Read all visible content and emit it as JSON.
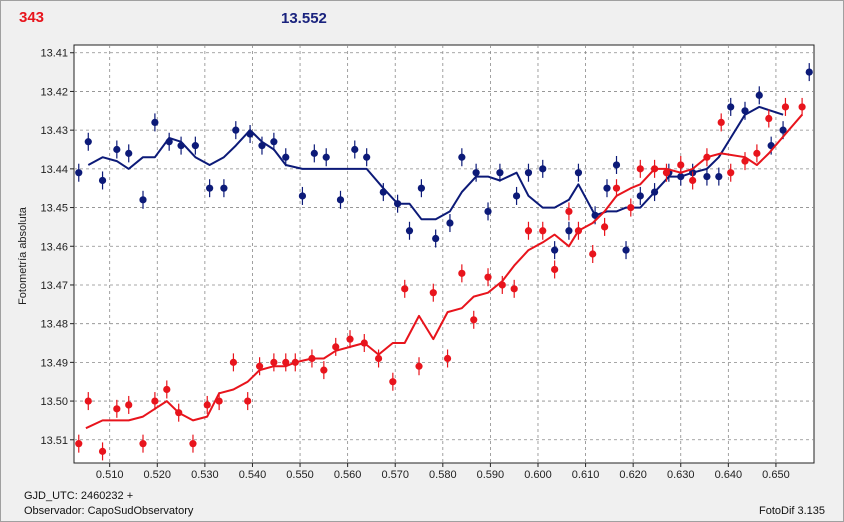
{
  "header": {
    "left_value": "343",
    "center_value": "13.552"
  },
  "footer": {
    "gjd": "GJD_UTC: 2460232 +",
    "observer": "Observador: CapoSudObservatory",
    "version": "FotoDif 3.135"
  },
  "colors": {
    "red_series": "#e8141c",
    "blue_series": "#0c1a78",
    "grid": "#8a8a8a",
    "plot_bg": "#ffffff"
  },
  "chart_data": {
    "type": "scatter",
    "title": "",
    "xlabel": "",
    "ylabel": "Fotometría absoluta",
    "xlim": [
      0.5025,
      0.658
    ],
    "ylim": [
      13.408,
      13.516
    ],
    "y_inverted": true,
    "grid": true,
    "x_ticks": [
      "0.510",
      "0.520",
      "0.530",
      "0.540",
      "0.550",
      "0.560",
      "0.570",
      "0.580",
      "0.590",
      "0.600",
      "0.610",
      "0.620",
      "0.630",
      "0.640",
      "0.650"
    ],
    "y_ticks": [
      "13.41",
      "13.42",
      "13.43",
      "13.44",
      "13.45",
      "13.46",
      "13.47",
      "13.48",
      "13.49",
      "13.50",
      "13.51"
    ],
    "series": [
      {
        "color": "#0c1a78",
        "points": [
          [
            0.5035,
            13.441
          ],
          [
            0.5055,
            13.433
          ],
          [
            0.5085,
            13.443
          ],
          [
            0.5115,
            13.435
          ],
          [
            0.514,
            13.436
          ],
          [
            0.517,
            13.448
          ],
          [
            0.5195,
            13.428
          ],
          [
            0.5225,
            13.433
          ],
          [
            0.525,
            13.434
          ],
          [
            0.528,
            13.434
          ],
          [
            0.531,
            13.445
          ],
          [
            0.534,
            13.445
          ],
          [
            0.5365,
            13.43
          ],
          [
            0.5395,
            13.431
          ],
          [
            0.542,
            13.434
          ],
          [
            0.5445,
            13.433
          ],
          [
            0.547,
            13.437
          ],
          [
            0.5505,
            13.447
          ],
          [
            0.553,
            13.436
          ],
          [
            0.5555,
            13.437
          ],
          [
            0.5585,
            13.448
          ],
          [
            0.5615,
            13.435
          ],
          [
            0.564,
            13.437
          ],
          [
            0.5675,
            13.446
          ],
          [
            0.5705,
            13.449
          ],
          [
            0.573,
            13.456
          ],
          [
            0.5755,
            13.445
          ],
          [
            0.5785,
            13.458
          ],
          [
            0.5815,
            13.454
          ],
          [
            0.584,
            13.437
          ],
          [
            0.587,
            13.441
          ],
          [
            0.5895,
            13.451
          ],
          [
            0.592,
            13.441
          ],
          [
            0.5955,
            13.447
          ],
          [
            0.598,
            13.441
          ],
          [
            0.601,
            13.44
          ],
          [
            0.6035,
            13.461
          ],
          [
            0.6065,
            13.456
          ],
          [
            0.6085,
            13.441
          ],
          [
            0.612,
            13.452
          ],
          [
            0.6145,
            13.445
          ],
          [
            0.6165,
            13.439
          ],
          [
            0.6185,
            13.461
          ],
          [
            0.6215,
            13.447
          ],
          [
            0.6245,
            13.446
          ],
          [
            0.6275,
            13.441
          ],
          [
            0.63,
            13.442
          ],
          [
            0.6325,
            13.441
          ],
          [
            0.6355,
            13.442
          ],
          [
            0.638,
            13.442
          ],
          [
            0.6405,
            13.424
          ],
          [
            0.6435,
            13.425
          ],
          [
            0.6465,
            13.421
          ],
          [
            0.649,
            13.434
          ],
          [
            0.6515,
            13.43
          ],
          [
            0.657,
            13.415
          ]
        ],
        "trend": [
          [
            0.5055,
            13.439
          ],
          [
            0.5085,
            13.437
          ],
          [
            0.5115,
            13.438
          ],
          [
            0.514,
            13.44
          ],
          [
            0.517,
            13.437
          ],
          [
            0.5195,
            13.437
          ],
          [
            0.5225,
            13.432
          ],
          [
            0.525,
            13.433
          ],
          [
            0.528,
            13.437
          ],
          [
            0.531,
            13.439
          ],
          [
            0.534,
            13.437
          ],
          [
            0.5365,
            13.434
          ],
          [
            0.5395,
            13.43
          ],
          [
            0.542,
            13.433
          ],
          [
            0.5445,
            13.435
          ],
          [
            0.547,
            13.439
          ],
          [
            0.5505,
            13.44
          ],
          [
            0.553,
            13.44
          ],
          [
            0.5585,
            13.44
          ],
          [
            0.5615,
            13.44
          ],
          [
            0.564,
            13.44
          ],
          [
            0.5675,
            13.445
          ],
          [
            0.5705,
            13.449
          ],
          [
            0.573,
            13.449
          ],
          [
            0.5755,
            13.453
          ],
          [
            0.5785,
            13.453
          ],
          [
            0.5815,
            13.451
          ],
          [
            0.584,
            13.446
          ],
          [
            0.587,
            13.442
          ],
          [
            0.5895,
            13.442
          ],
          [
            0.592,
            13.443
          ],
          [
            0.5955,
            13.441
          ],
          [
            0.598,
            13.447
          ],
          [
            0.601,
            13.45
          ],
          [
            0.6035,
            13.45
          ],
          [
            0.6065,
            13.448
          ],
          [
            0.6085,
            13.444
          ],
          [
            0.612,
            13.452
          ],
          [
            0.6145,
            13.451
          ],
          [
            0.6165,
            13.451
          ],
          [
            0.6185,
            13.45
          ],
          [
            0.6215,
            13.45
          ],
          [
            0.6245,
            13.446
          ],
          [
            0.6275,
            13.442
          ],
          [
            0.63,
            13.442
          ],
          [
            0.6325,
            13.441
          ],
          [
            0.6355,
            13.44
          ],
          [
            0.638,
            13.437
          ],
          [
            0.6405,
            13.432
          ],
          [
            0.6435,
            13.426
          ],
          [
            0.6465,
            13.424
          ],
          [
            0.649,
            13.425
          ],
          [
            0.6515,
            13.426
          ]
        ]
      },
      {
        "color": "#e8141c",
        "points": [
          [
            0.5035,
            13.511
          ],
          [
            0.5055,
            13.5
          ],
          [
            0.5085,
            13.513
          ],
          [
            0.5115,
            13.502
          ],
          [
            0.514,
            13.501
          ],
          [
            0.517,
            13.511
          ],
          [
            0.5195,
            13.5
          ],
          [
            0.522,
            13.497
          ],
          [
            0.5245,
            13.503
          ],
          [
            0.5275,
            13.511
          ],
          [
            0.5305,
            13.501
          ],
          [
            0.533,
            13.5
          ],
          [
            0.536,
            13.49
          ],
          [
            0.539,
            13.5
          ],
          [
            0.5415,
            13.491
          ],
          [
            0.5445,
            13.49
          ],
          [
            0.547,
            13.49
          ],
          [
            0.549,
            13.49
          ],
          [
            0.5525,
            13.489
          ],
          [
            0.555,
            13.492
          ],
          [
            0.5575,
            13.486
          ],
          [
            0.5605,
            13.484
          ],
          [
            0.5635,
            13.485
          ],
          [
            0.5665,
            13.489
          ],
          [
            0.5695,
            13.495
          ],
          [
            0.572,
            13.471
          ],
          [
            0.575,
            13.491
          ],
          [
            0.578,
            13.472
          ],
          [
            0.581,
            13.489
          ],
          [
            0.584,
            13.467
          ],
          [
            0.5865,
            13.479
          ],
          [
            0.5895,
            13.468
          ],
          [
            0.5925,
            13.47
          ],
          [
            0.595,
            13.471
          ],
          [
            0.598,
            13.456
          ],
          [
            0.601,
            13.456
          ],
          [
            0.6035,
            13.466
          ],
          [
            0.6065,
            13.451
          ],
          [
            0.6085,
            13.456
          ],
          [
            0.6115,
            13.462
          ],
          [
            0.614,
            13.455
          ],
          [
            0.6165,
            13.445
          ],
          [
            0.6195,
            13.45
          ],
          [
            0.6215,
            13.44
          ],
          [
            0.6245,
            13.44
          ],
          [
            0.627,
            13.441
          ],
          [
            0.63,
            13.439
          ],
          [
            0.6325,
            13.443
          ],
          [
            0.6355,
            13.437
          ],
          [
            0.6385,
            13.428
          ],
          [
            0.6405,
            13.441
          ],
          [
            0.6435,
            13.438
          ],
          [
            0.646,
            13.436
          ],
          [
            0.6485,
            13.427
          ],
          [
            0.652,
            13.424
          ],
          [
            0.6555,
            13.424
          ]
        ],
        "trend": [
          [
            0.505,
            13.507
          ],
          [
            0.5085,
            13.505
          ],
          [
            0.5115,
            13.505
          ],
          [
            0.514,
            13.505
          ],
          [
            0.517,
            13.504
          ],
          [
            0.5195,
            13.502
          ],
          [
            0.522,
            13.5
          ],
          [
            0.5245,
            13.503
          ],
          [
            0.5275,
            13.505
          ],
          [
            0.5305,
            13.504
          ],
          [
            0.533,
            13.498
          ],
          [
            0.536,
            13.497
          ],
          [
            0.539,
            13.495
          ],
          [
            0.5415,
            13.492
          ],
          [
            0.5445,
            13.491
          ],
          [
            0.547,
            13.491
          ],
          [
            0.549,
            13.49
          ],
          [
            0.5525,
            13.489
          ],
          [
            0.555,
            13.489
          ],
          [
            0.5575,
            13.487
          ],
          [
            0.5605,
            13.486
          ],
          [
            0.5635,
            13.485
          ],
          [
            0.5665,
            13.488
          ],
          [
            0.5695,
            13.485
          ],
          [
            0.572,
            13.485
          ],
          [
            0.575,
            13.478
          ],
          [
            0.578,
            13.484
          ],
          [
            0.581,
            13.477
          ],
          [
            0.584,
            13.476
          ],
          [
            0.5865,
            13.473
          ],
          [
            0.5895,
            13.472
          ],
          [
            0.5925,
            13.469
          ],
          [
            0.595,
            13.465
          ],
          [
            0.598,
            13.461
          ],
          [
            0.601,
            13.459
          ],
          [
            0.6035,
            13.457
          ],
          [
            0.6065,
            13.46
          ],
          [
            0.6085,
            13.456
          ],
          [
            0.6115,
            13.454
          ],
          [
            0.614,
            13.451
          ],
          [
            0.6165,
            13.447
          ],
          [
            0.6195,
            13.445
          ],
          [
            0.6215,
            13.444
          ],
          [
            0.6245,
            13.44
          ],
          [
            0.627,
            13.44
          ],
          [
            0.63,
            13.441
          ],
          [
            0.6325,
            13.44
          ],
          [
            0.6355,
            13.437
          ],
          [
            0.6385,
            13.436
          ],
          [
            0.6435,
            13.437
          ],
          [
            0.646,
            13.439
          ],
          [
            0.6485,
            13.436
          ],
          [
            0.652,
            13.431
          ],
          [
            0.6555,
            13.426
          ]
        ]
      }
    ]
  }
}
